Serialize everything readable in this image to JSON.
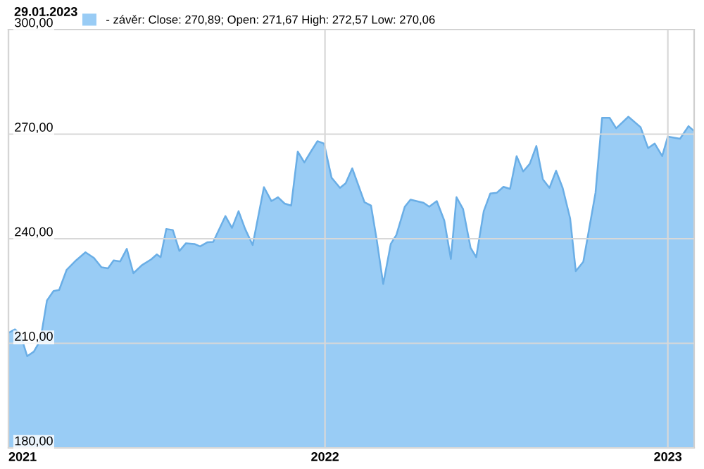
{
  "chart_data": {
    "type": "area",
    "title": "29.01.2023",
    "legend": "top",
    "grid": true,
    "x": [
      "2021-01-29",
      "2021-02-05",
      "2021-02-11",
      "2021-02-18",
      "2021-02-25",
      "2021-03-04",
      "2021-03-11",
      "2021-03-18",
      "2021-03-24",
      "2021-04-01",
      "2021-04-11",
      "2021-04-21",
      "2021-04-30",
      "2021-05-08",
      "2021-05-15",
      "2021-05-21",
      "2021-05-28",
      "2021-06-04",
      "2021-06-11",
      "2021-06-20",
      "2021-06-30",
      "2021-07-06",
      "2021-07-10",
      "2021-07-16",
      "2021-07-23",
      "2021-07-30",
      "2021-08-06",
      "2021-08-15",
      "2021-08-21",
      "2021-08-29",
      "2021-09-04",
      "2021-09-17",
      "2021-09-24",
      "2021-10-01",
      "2021-10-08",
      "2021-10-16",
      "2021-10-28",
      "2021-11-05",
      "2021-11-12",
      "2021-11-19",
      "2021-11-26",
      "2021-12-03",
      "2021-12-10",
      "2021-12-17",
      "2021-12-24",
      "2021-12-31",
      "2022-01-08",
      "2022-01-17",
      "2022-01-23",
      "2022-01-30",
      "2022-02-12",
      "2022-02-19",
      "2022-02-25",
      "2022-03-04",
      "2022-03-12",
      "2022-03-18",
      "2022-03-27",
      "2022-04-02",
      "2022-04-16",
      "2022-04-22",
      "2022-04-30",
      "2022-05-08",
      "2022-05-15",
      "2022-05-21",
      "2022-05-28",
      "2022-06-05",
      "2022-06-11",
      "2022-06-19",
      "2022-06-26",
      "2022-07-03",
      "2022-07-10",
      "2022-07-17",
      "2022-07-24",
      "2022-07-31",
      "2022-08-07",
      "2022-08-14",
      "2022-08-21",
      "2022-08-28",
      "2022-09-04",
      "2022-09-11",
      "2022-09-19",
      "2022-09-25",
      "2022-10-03",
      "2022-10-16",
      "2022-10-23",
      "2022-10-31",
      "2022-11-07",
      "2022-11-20",
      "2022-12-03",
      "2022-12-11",
      "2022-12-18",
      "2022-12-26",
      "2023-01-01",
      "2023-01-14",
      "2023-01-23",
      "2023-01-29"
    ],
    "series": [
      {
        "name": "- závěr: Close: 270,89; Open: 271,67 High: 272,57 Low: 270,06",
        "color": "#99ccf5",
        "values": [
          213.0,
          214.0,
          212.3,
          206.3,
          207.6,
          210.9,
          222.3,
          225.0,
          225.3,
          231.1,
          233.8,
          236.1,
          234.5,
          231.8,
          231.5,
          233.8,
          233.5,
          237.1,
          230.1,
          232.4,
          234.1,
          235.5,
          234.7,
          242.8,
          242.5,
          236.5,
          238.7,
          238.5,
          237.8,
          239.0,
          239.1,
          246.5,
          243.1,
          247.9,
          242.8,
          238.2,
          254.8,
          250.8,
          251.9,
          250.1,
          249.5,
          265.0,
          261.9,
          265.0,
          268.0,
          267.3,
          257.5,
          254.6,
          255.9,
          260.2,
          250.5,
          249.5,
          239.8,
          227.0,
          238.5,
          241.1,
          249.2,
          251.2,
          250.3,
          249.2,
          250.8,
          245.2,
          234.2,
          251.9,
          248.5,
          237.4,
          234.7,
          247.9,
          253.0,
          253.2,
          254.9,
          254.3,
          263.7,
          259.3,
          261.5,
          266.6,
          257.0,
          254.6,
          259.5,
          254.6,
          245.8,
          230.7,
          233.4,
          253.2,
          274.7,
          274.7,
          271.7,
          275.0,
          272.0,
          266.0,
          267.3,
          263.7,
          269.3,
          268.7,
          272.3,
          270.9
        ]
      }
    ],
    "xlim": [
      "2021-01-29",
      "2023-01-29"
    ],
    "xticks": [
      {
        "value": "2021-01-29",
        "label": "2021"
      },
      {
        "value": "2022-01-01",
        "label": "2022"
      },
      {
        "value": "2023-01-01",
        "label": "2023"
      }
    ],
    "ylim": [
      180,
      300
    ],
    "yticks": [
      {
        "value": 180,
        "label": "180,00"
      },
      {
        "value": 210,
        "label": "210,00"
      },
      {
        "value": 240,
        "label": "240,00"
      },
      {
        "value": 270,
        "label": "270,00"
      },
      {
        "value": 300,
        "label": "300,00"
      }
    ]
  }
}
